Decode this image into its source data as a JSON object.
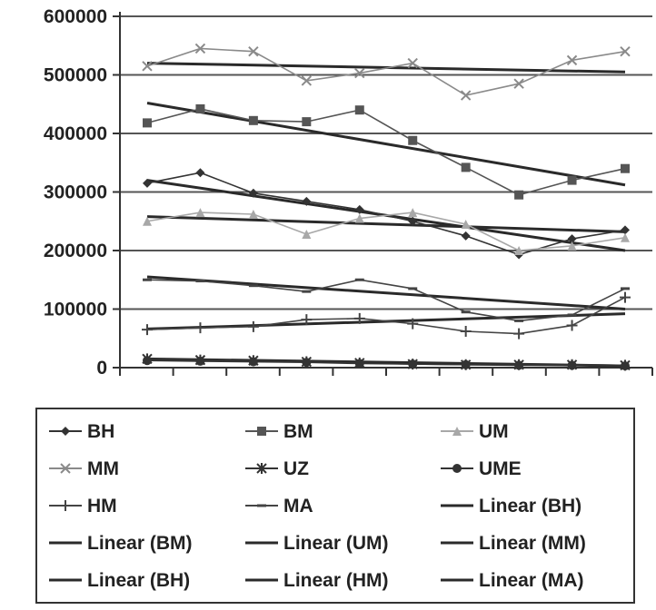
{
  "chart_data": {
    "type": "line",
    "title": "",
    "xlabel": "",
    "ylabel": "",
    "ylim": [
      0,
      600000
    ],
    "yticks": [
      0,
      100000,
      200000,
      300000,
      400000,
      500000,
      600000
    ],
    "yticks_text": [
      "0",
      "100000",
      "200000",
      "300000",
      "400000",
      "500000",
      "600000"
    ],
    "x": [
      1,
      2,
      3,
      4,
      5,
      6,
      7,
      8,
      9,
      10
    ],
    "grid": "horizontal",
    "legend_position": "bottom",
    "series": [
      {
        "name": "BH",
        "values": [
          315000,
          333000,
          298000,
          284000,
          270000,
          250000,
          225000,
          193000,
          220000,
          235000
        ],
        "color": "#333333",
        "marker": "diamond"
      },
      {
        "name": "BM",
        "values": [
          418000,
          442000,
          422000,
          420000,
          440000,
          388000,
          342000,
          295000,
          320000,
          340000
        ],
        "color": "#555555",
        "marker": "square"
      },
      {
        "name": "UM",
        "values": [
          250000,
          265000,
          262000,
          228000,
          255000,
          265000,
          245000,
          200000,
          208000,
          222000
        ],
        "color": "#a8a8a8",
        "marker": "triangle"
      },
      {
        "name": "MM",
        "values": [
          515000,
          545000,
          540000,
          490000,
          503000,
          520000,
          465000,
          485000,
          525000,
          540000
        ],
        "color": "#8a8a8a",
        "marker": "x"
      },
      {
        "name": "UZ",
        "values": [
          15000,
          13000,
          12000,
          10000,
          8000,
          6000,
          5000,
          5000,
          5000,
          4000
        ],
        "color": "#333333",
        "marker": "star"
      },
      {
        "name": "UME",
        "values": [
          12000,
          11000,
          10000,
          9000,
          7000,
          6000,
          5000,
          4000,
          4000,
          3000
        ],
        "color": "#333333",
        "marker": "circle"
      },
      {
        "name": "HM",
        "values": [
          65000,
          68000,
          70000,
          82000,
          84000,
          75000,
          62000,
          58000,
          72000,
          120000
        ],
        "color": "#444444",
        "marker": "plus"
      },
      {
        "name": "MA",
        "values": [
          150000,
          148000,
          140000,
          130000,
          150000,
          135000,
          95000,
          80000,
          90000,
          135000
        ],
        "color": "#444444",
        "marker": "dash"
      }
    ],
    "trendlines": [
      {
        "name": "Linear (BH)",
        "start": 320000,
        "end": 200000
      },
      {
        "name": "Linear (BM)",
        "start": 452000,
        "end": 312000
      },
      {
        "name": "Linear (UM)",
        "start": 258000,
        "end": 232000
      },
      {
        "name": "Linear (MM)",
        "start": 520000,
        "end": 505000
      },
      {
        "name": "Linear (BH)",
        "start": 15000,
        "end": 3000
      },
      {
        "name": "Linear (HM)",
        "start": 66000,
        "end": 92000
      },
      {
        "name": "Linear (MA)",
        "start": 155000,
        "end": 100000
      }
    ],
    "legend": [
      {
        "label": "BH",
        "style": "diamond"
      },
      {
        "label": "BM",
        "style": "square"
      },
      {
        "label": "UM",
        "style": "triangle"
      },
      {
        "label": "MM",
        "style": "x"
      },
      {
        "label": "UZ",
        "style": "star"
      },
      {
        "label": "UME",
        "style": "circle"
      },
      {
        "label": "HM",
        "style": "plus"
      },
      {
        "label": "MA",
        "style": "dash"
      },
      {
        "label": "Linear (BH)",
        "style": "line"
      },
      {
        "label": "Linear (BM)",
        "style": "line"
      },
      {
        "label": "Linear (UM)",
        "style": "line"
      },
      {
        "label": "Linear (MM)",
        "style": "line"
      },
      {
        "label": "Linear (BH)",
        "style": "line"
      },
      {
        "label": "Linear (HM)",
        "style": "line"
      },
      {
        "label": "Linear (MA)",
        "style": "line"
      }
    ]
  }
}
